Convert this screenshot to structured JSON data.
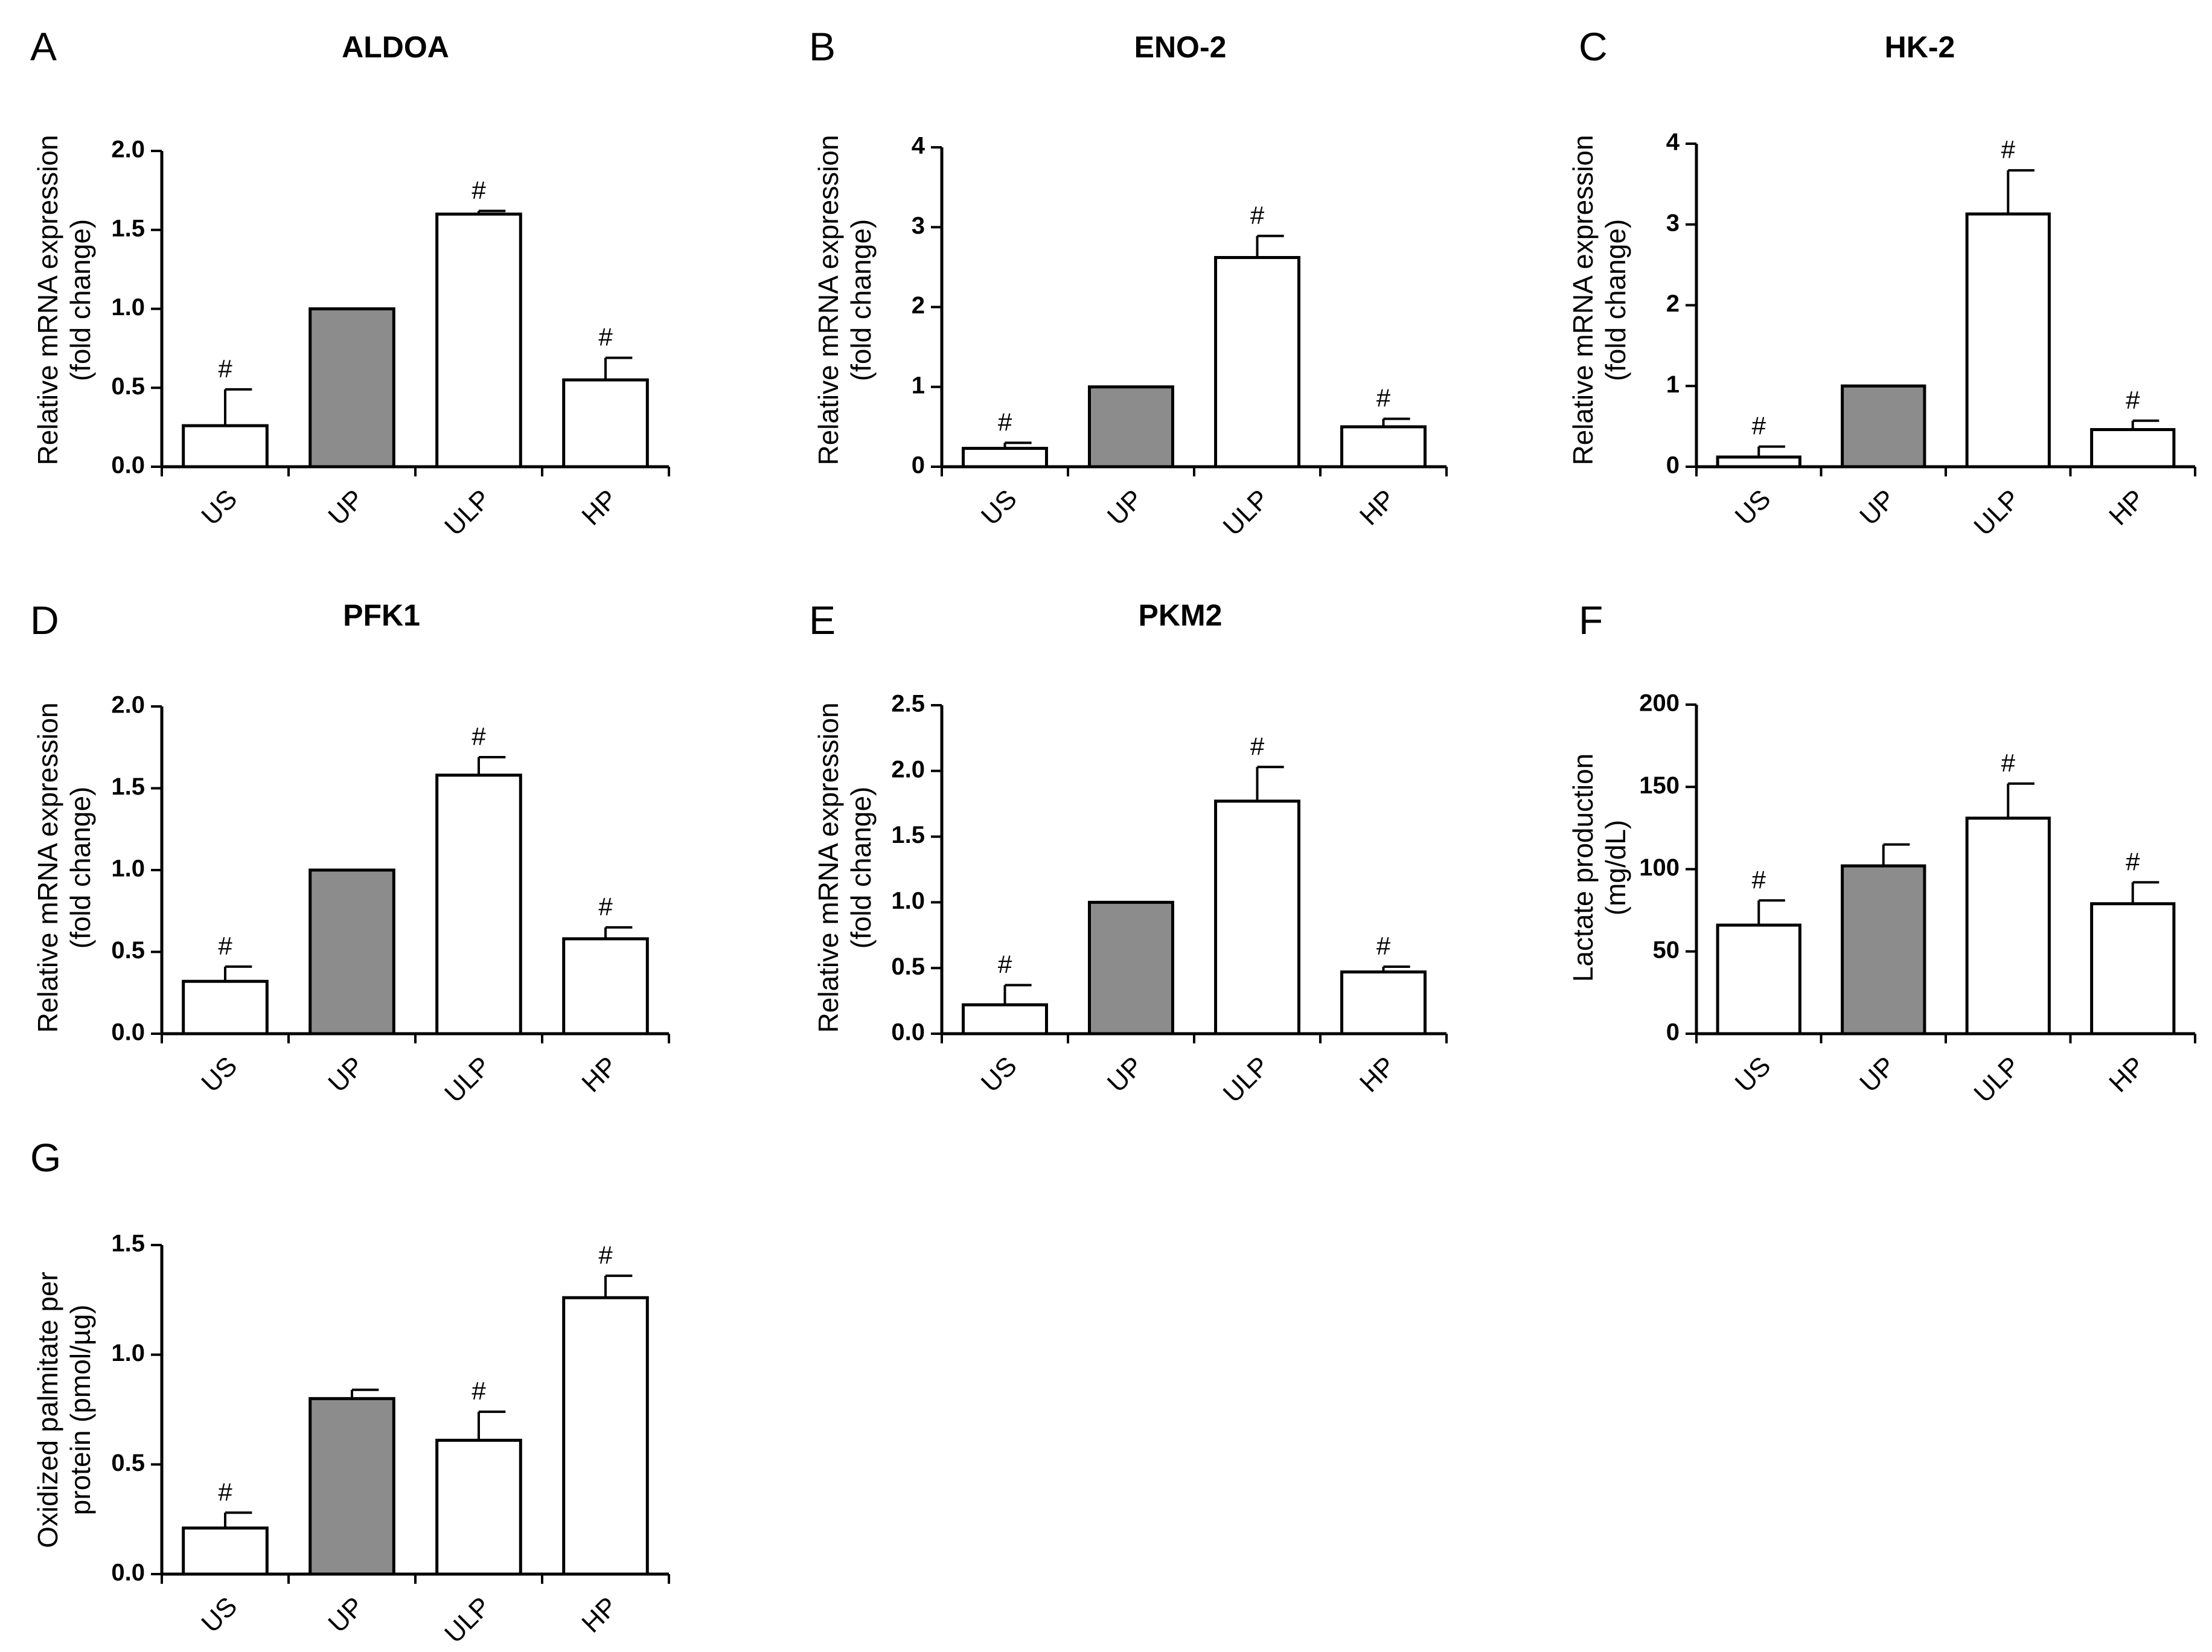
{
  "figure": {
    "colors": {
      "control_bar": "#8c8c8c",
      "other_bar": "#ffffff",
      "stroke": "#000000"
    }
  },
  "chart_data": [
    {
      "panel": "A",
      "title": "ALDOA",
      "type": "bar",
      "ylabel_lines": [
        "Relative mRNA expression",
        "(fold change)"
      ],
      "categories": [
        "US",
        "UP",
        "ULP",
        "HP"
      ],
      "values": [
        0.26,
        1.0,
        1.6,
        0.55
      ],
      "errors": [
        0.23,
        0.0,
        0.02,
        0.14
      ],
      "significance": [
        "#",
        "",
        "#",
        "#"
      ],
      "fills": [
        "#ffffff",
        "#8c8c8c",
        "#ffffff",
        "#ffffff"
      ],
      "ylim": [
        0,
        2.0
      ],
      "yticks": [
        0,
        0.5,
        1.0,
        1.5,
        2.0
      ],
      "ytick_labels": [
        "0.0",
        "0.5",
        "1.0",
        "1.5",
        "2.0"
      ]
    },
    {
      "panel": "B",
      "title": "ENO-2",
      "type": "bar",
      "ylabel_lines": [
        "Relative mRNA expression",
        "(fold change)"
      ],
      "categories": [
        "US",
        "UP",
        "ULP",
        "HP"
      ],
      "values": [
        0.23,
        1.0,
        2.62,
        0.5
      ],
      "errors": [
        0.07,
        0.0,
        0.27,
        0.1
      ],
      "significance": [
        "#",
        "",
        "#",
        "#"
      ],
      "fills": [
        "#ffffff",
        "#8c8c8c",
        "#ffffff",
        "#ffffff"
      ],
      "ylim": [
        0,
        4
      ],
      "yticks": [
        0,
        1,
        2,
        3,
        4
      ],
      "ytick_labels": [
        "0",
        "1",
        "2",
        "3",
        "4"
      ]
    },
    {
      "panel": "C",
      "title": "HK-2",
      "type": "bar",
      "ylabel_lines": [
        "Relative mRNA expression",
        "(fold change)"
      ],
      "categories": [
        "US",
        "UP",
        "ULP",
        "HP"
      ],
      "values": [
        0.12,
        1.0,
        3.13,
        0.46
      ],
      "errors": [
        0.13,
        0.0,
        0.54,
        0.11
      ],
      "significance": [
        "#",
        "",
        "#",
        "#"
      ],
      "fills": [
        "#ffffff",
        "#8c8c8c",
        "#ffffff",
        "#ffffff"
      ],
      "ylim": [
        0,
        4
      ],
      "yticks": [
        0,
        1,
        2,
        3,
        4
      ],
      "ytick_labels": [
        "0",
        "1",
        "2",
        "3",
        "4"
      ]
    },
    {
      "panel": "D",
      "title": "PFK1",
      "type": "bar",
      "ylabel_lines": [
        "Relative mRNA expression",
        "(fold change)"
      ],
      "categories": [
        "US",
        "UP",
        "ULP",
        "HP"
      ],
      "values": [
        0.32,
        1.0,
        1.58,
        0.58
      ],
      "errors": [
        0.09,
        0.0,
        0.11,
        0.07
      ],
      "significance": [
        "#",
        "",
        "#",
        "#"
      ],
      "fills": [
        "#ffffff",
        "#8c8c8c",
        "#ffffff",
        "#ffffff"
      ],
      "ylim": [
        0,
        2.0
      ],
      "yticks": [
        0,
        0.5,
        1.0,
        1.5,
        2.0
      ],
      "ytick_labels": [
        "0.0",
        "0.5",
        "1.0",
        "1.5",
        "2.0"
      ]
    },
    {
      "panel": "E",
      "title": "PKM2",
      "type": "bar",
      "ylabel_lines": [
        "Relative mRNA expression",
        "(fold change)"
      ],
      "categories": [
        "US",
        "UP",
        "ULP",
        "HP"
      ],
      "values": [
        0.22,
        1.0,
        1.77,
        0.47
      ],
      "errors": [
        0.15,
        0.0,
        0.26,
        0.04
      ],
      "significance": [
        "#",
        "",
        "#",
        "#"
      ],
      "fills": [
        "#ffffff",
        "#8c8c8c",
        "#ffffff",
        "#ffffff"
      ],
      "ylim": [
        0,
        2.5
      ],
      "yticks": [
        0,
        0.5,
        1.0,
        1.5,
        2.0,
        2.5
      ],
      "ytick_labels": [
        "0.0",
        "0.5",
        "1.0",
        "1.5",
        "2.0",
        "2.5"
      ]
    },
    {
      "panel": "F",
      "title": "",
      "type": "bar",
      "ylabel_lines": [
        "Lactate production",
        "(mg/dL)"
      ],
      "categories": [
        "US",
        "UP",
        "ULP",
        "HP"
      ],
      "values": [
        66,
        102,
        131,
        79
      ],
      "errors": [
        15,
        13,
        21,
        13
      ],
      "significance": [
        "#",
        "",
        "#",
        "#"
      ],
      "fills": [
        "#ffffff",
        "#8c8c8c",
        "#ffffff",
        "#ffffff"
      ],
      "ylim": [
        0,
        200
      ],
      "yticks": [
        0,
        50,
        100,
        150,
        200
      ],
      "ytick_labels": [
        "0",
        "50",
        "100",
        "150",
        "200"
      ]
    },
    {
      "panel": "G",
      "title": "",
      "type": "bar",
      "ylabel_lines": [
        "Oxidized palmitate per",
        "protein (pmol/µg)"
      ],
      "categories": [
        "US",
        "UP",
        "ULP",
        "HP"
      ],
      "values": [
        0.21,
        0.8,
        0.61,
        1.26
      ],
      "errors": [
        0.07,
        0.04,
        0.13,
        0.1
      ],
      "significance": [
        "#",
        "",
        "#",
        "#"
      ],
      "fills": [
        "#ffffff",
        "#8c8c8c",
        "#ffffff",
        "#ffffff"
      ],
      "ylim": [
        0,
        1.5
      ],
      "yticks": [
        0,
        0.5,
        1.0,
        1.5
      ],
      "ytick_labels": [
        "0.0",
        "0.5",
        "1.0",
        "1.5"
      ]
    }
  ]
}
